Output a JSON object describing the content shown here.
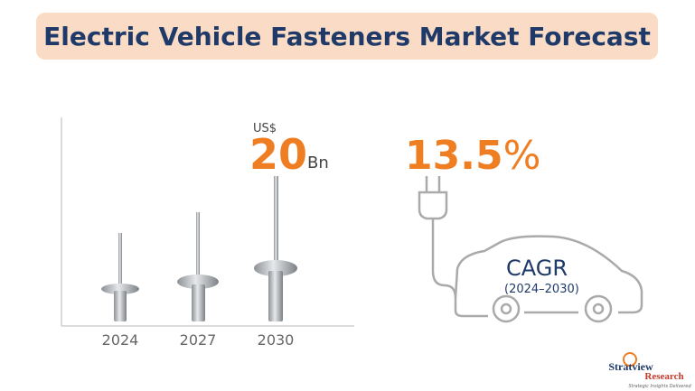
{
  "header": {
    "title": "Electric Vehicle Fasteners Market Forecast"
  },
  "forecast": {
    "years": [
      "2024",
      "2027",
      "2030"
    ],
    "currency": "US$",
    "value": "20",
    "unit": "Bn"
  },
  "growth": {
    "rate": "13.5",
    "rate_unit": "%",
    "label": "CAGR",
    "period": "(2024–2030)"
  },
  "brand": {
    "name": "Stratview",
    "sub": "Research",
    "tagline": "Strategic Insights Delivered"
  }
}
